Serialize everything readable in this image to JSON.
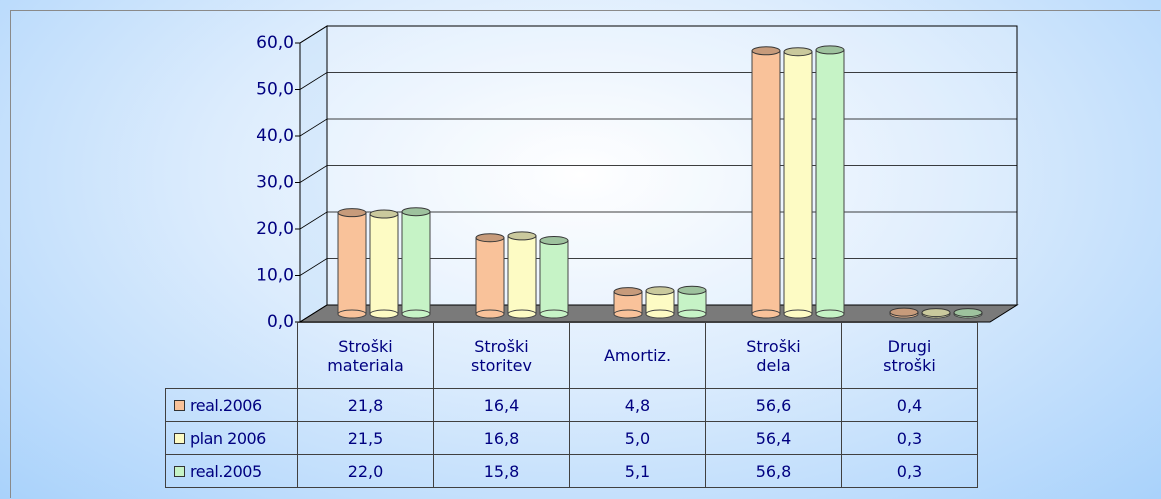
{
  "chart_data": {
    "type": "bar",
    "categories": [
      "Stroški materiala",
      "Stroški storitev",
      "Amortiz.",
      "Stroški dela",
      "Drugi stroški"
    ],
    "series": [
      {
        "name": "real.2006",
        "color": "#f9c29a",
        "values": [
          21.8,
          16.4,
          4.8,
          56.6,
          0.4
        ],
        "value_labels": [
          "21,8",
          "16,4",
          "4,8",
          "56,6",
          "0,4"
        ]
      },
      {
        "name": "plan 2006",
        "color": "#fdfbc4",
        "values": [
          21.5,
          16.8,
          5.0,
          56.4,
          0.3
        ],
        "value_labels": [
          "21,5",
          "16,8",
          "5,0",
          "56,4",
          "0,3"
        ]
      },
      {
        "name": "real.2005",
        "color": "#c6f3c6",
        "values": [
          22.0,
          15.8,
          5.1,
          56.8,
          0.3
        ],
        "value_labels": [
          "22,0",
          "15,8",
          "5,1",
          "56,8",
          "0,3"
        ]
      }
    ],
    "ylim": [
      0,
      60
    ],
    "yticks": [
      {
        "value": 0,
        "label": "0,0"
      },
      {
        "value": 10,
        "label": "10,0"
      },
      {
        "value": 20,
        "label": "20,0"
      },
      {
        "value": 30,
        "label": "30,0"
      },
      {
        "value": 40,
        "label": "40,0"
      },
      {
        "value": 50,
        "label": "50,0"
      },
      {
        "value": 60,
        "label": "60,0"
      }
    ],
    "grid": true
  }
}
